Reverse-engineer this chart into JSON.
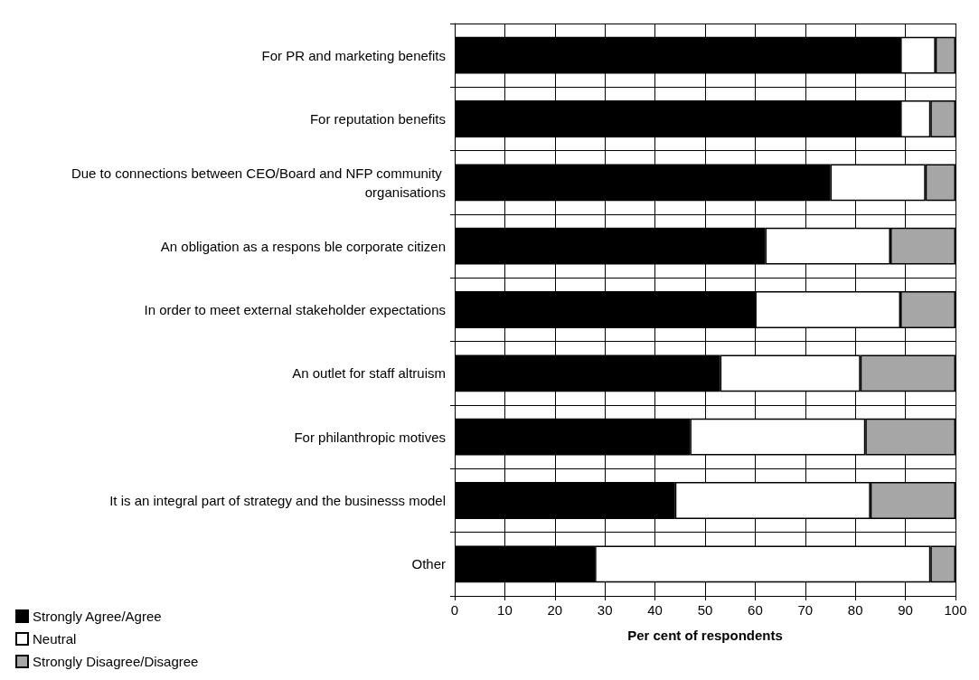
{
  "chart_data": {
    "type": "bar",
    "orientation": "horizontal",
    "stacked": true,
    "xlabel": "Per cent of respondents",
    "categories": [
      "For PR and marketing benefits",
      "For reputation benefits",
      "Due to connections between CEO/Board and NFP community organisations",
      "An obligation as a respons ble corporate citizen",
      "In order to meet external stakeholder expectations",
      "An outlet for staff altruism",
      "For philanthropic motives",
      "It is an integral part of strategy and the businesss model",
      "Other"
    ],
    "series": [
      {
        "name": "Strongly Agree/Agree",
        "color": "#000000",
        "values": [
          89,
          89,
          75,
          62,
          60,
          53,
          47,
          44,
          28
        ]
      },
      {
        "name": "Neutral",
        "color": "#ffffff",
        "values": [
          7,
          6,
          19,
          25,
          29,
          28,
          35,
          39,
          67
        ]
      },
      {
        "name": "Strongly Disagree/Disagree",
        "color": "#a6a6a6",
        "values": [
          4,
          5,
          6,
          13,
          11,
          19,
          18,
          17,
          5
        ]
      }
    ],
    "xlim": [
      0,
      100
    ],
    "xticks": [
      0,
      10,
      20,
      30,
      40,
      50,
      60,
      70,
      80,
      90,
      100
    ],
    "grid": true,
    "legend": "bottom left"
  }
}
